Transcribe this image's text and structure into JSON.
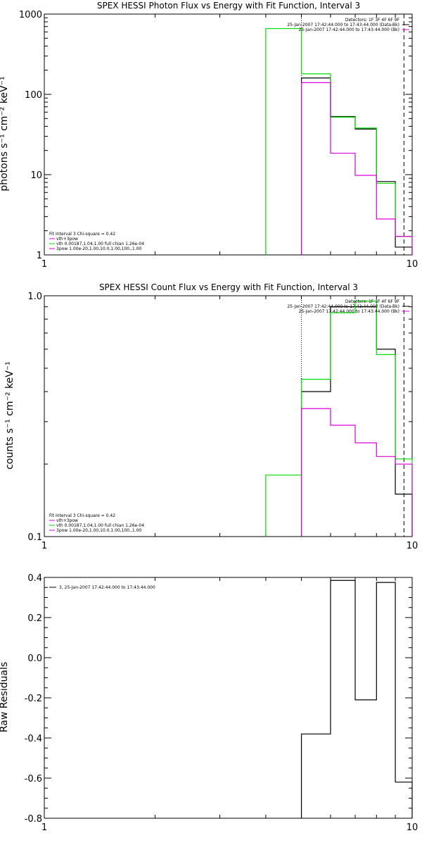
{
  "chart_data": [
    {
      "type": "line",
      "title": "SPEX HESSI Photon Flux vs Energy with Fit Function, Interval 3",
      "ylabel": "photons s⁻¹ cm⁻² keV⁻¹",
      "xscale": "log",
      "yscale": "log",
      "xlim": [
        1,
        10
      ],
      "ylim": [
        1,
        1000
      ],
      "x_ticks": [
        "1",
        "10"
      ],
      "y_ticks": [
        "1",
        "10",
        "100",
        "1000"
      ],
      "vlines": [
        {
          "x": 5,
          "style": "dotted"
        },
        {
          "x": 9.5,
          "style": "dashed"
        }
      ],
      "legend_top": {
        "position": "top-right",
        "lines": [
          "Detectors: 1F 3F 4F 6F 9F",
          "25-Jan-2007 17:42:44.000 to 17:43:44.000 (Data-Bk)",
          "25-Jan-2007 17:42:44.000 to 17:43:44.000 (Bk)"
        ]
      },
      "legend_bottom": {
        "position": "bottom-left",
        "lines": [
          "Fit Interval 3   Chi-square = 0.42",
          "vth+3pow",
          "vth 0.00187,1.04,1.00   full chian 1.26e-04",
          "3pow 1.00e-20,1.00,10.0,1.00,100.,1.00"
        ]
      },
      "series": [
        {
          "color": "#000000",
          "edges": [
            5,
            6,
            7,
            8,
            9,
            10
          ],
          "values": [
            160,
            53,
            37,
            8.2,
            1.25
          ]
        },
        {
          "color": "#00dd00",
          "edges": [
            4,
            5,
            6,
            7,
            8,
            9,
            10
          ],
          "values": [
            660,
            180,
            52,
            38,
            7.8,
            1.7
          ]
        },
        {
          "color": "#dd00dd",
          "edges": [
            5,
            6,
            7,
            8,
            9,
            10
          ],
          "values": [
            140,
            18.5,
            9.8,
            2.8,
            1.7
          ]
        }
      ]
    },
    {
      "type": "line",
      "title": "SPEX HESSI Count Flux vs Energy with Fit Function, Interval 3",
      "ylabel": "counts s⁻¹ cm⁻² keV⁻¹",
      "xscale": "log",
      "yscale": "log",
      "xlim": [
        1,
        10
      ],
      "ylim": [
        0.1,
        1.0
      ],
      "x_ticks": [
        "1",
        "10"
      ],
      "y_ticks": [
        "0.1",
        "1.0"
      ],
      "vlines": [
        {
          "x": 5,
          "style": "dotted"
        },
        {
          "x": 9.5,
          "style": "dashed"
        }
      ],
      "legend_top": {
        "position": "top-right",
        "lines": [
          "Detectors: 1F 3F 4F 6F 9F",
          "25-Jan-2007 17:42:44.000 to 17:43:44.000 (Data-Bk)",
          "25-Jan-2007 17:42:44.000 to 17:43:44.000 (Bk)"
        ]
      },
      "legend_bottom": {
        "position": "bottom-left",
        "lines": [
          "Fit Interval 3   Chi-square = 0.42",
          "vth+3pow",
          "vth 0.00187,1.04,1.00   full chian 1.26e-04",
          "3pow 1.00e-20,1.00,10.0,1.00,100.,1.00"
        ]
      },
      "series": [
        {
          "color": "#000000",
          "edges": [
            5,
            6,
            7,
            8,
            9,
            10
          ],
          "values": [
            0.4,
            0.9,
            0.9,
            0.6,
            0.15
          ]
        },
        {
          "color": "#00dd00",
          "edges": [
            4,
            5,
            6,
            7,
            8,
            9,
            10
          ],
          "values": [
            0.18,
            0.45,
            0.85,
            0.95,
            0.57,
            0.21
          ]
        },
        {
          "color": "#dd00dd",
          "edges": [
            5,
            6,
            7,
            8,
            9,
            10
          ],
          "values": [
            0.34,
            0.29,
            0.245,
            0.215,
            0.2
          ]
        }
      ]
    },
    {
      "type": "line",
      "title": "",
      "ylabel": "Raw Residuals",
      "xscale": "log",
      "yscale": "linear",
      "xlim": [
        1,
        10
      ],
      "ylim": [
        -0.8,
        0.4
      ],
      "x_ticks": [
        "1",
        "10"
      ],
      "y_ticks": [
        "-0.8",
        "-0.6",
        "-0.4",
        "-0.2",
        "0.0",
        "0.2",
        "0.4"
      ],
      "legend_top": {
        "position": "top-left",
        "lines": [
          "3, 25-Jan-2007 17:42:44.000 to 17:43:44.000"
        ]
      },
      "series": [
        {
          "color": "#000000",
          "edges": [
            5,
            6,
            7,
            8,
            9,
            10
          ],
          "values": [
            -0.38,
            0.385,
            -0.21,
            0.375,
            -0.62
          ]
        }
      ]
    }
  ]
}
